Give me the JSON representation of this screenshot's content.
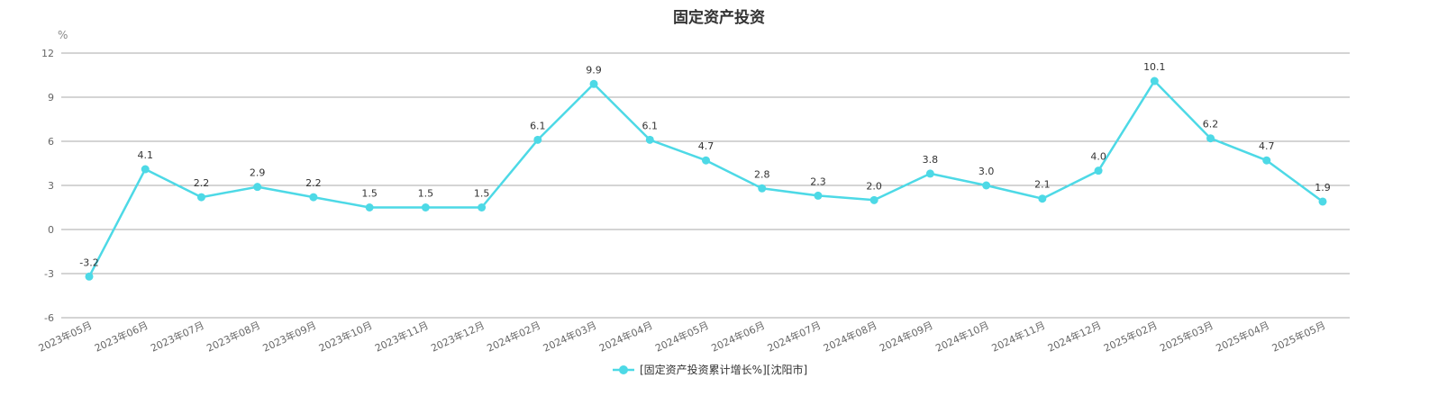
{
  "chart_data": {
    "type": "line",
    "title": "固定资产投资",
    "ylabel": "%",
    "xlabel": "",
    "ylim": [
      -6,
      12
    ],
    "yticks": [
      -6,
      -3,
      0,
      3,
      6,
      9,
      12
    ],
    "grid": true,
    "legend_position": "bottom-center",
    "categories": [
      "2023年05月",
      "2023年06月",
      "2023年07月",
      "2023年08月",
      "2023年09月",
      "2023年10月",
      "2023年11月",
      "2023年12月",
      "2024年02月",
      "2024年03月",
      "2024年04月",
      "2024年05月",
      "2024年06月",
      "2024年07月",
      "2024年08月",
      "2024年09月",
      "2024年10月",
      "2024年11月",
      "2024年12月",
      "2025年02月",
      "2025年03月",
      "2025年04月",
      "2025年05月"
    ],
    "series": [
      {
        "name": "[固定资产投资累计增长%][沈阳市]",
        "color": "#4dd9e6",
        "values": [
          -3.2,
          4.1,
          2.2,
          2.9,
          2.2,
          1.5,
          1.5,
          1.5,
          6.1,
          9.9,
          6.1,
          4.7,
          2.8,
          2.3,
          2.0,
          3.8,
          3.0,
          2.1,
          4.0,
          10.1,
          6.2,
          4.7,
          1.9
        ],
        "labels": [
          "-3.2",
          "4.1",
          "2.2",
          "2.9",
          "2.2",
          "1.5",
          "1.5",
          "1.5",
          "6.1",
          "9.9",
          "6.1",
          "4.7",
          "2.8",
          "2.3",
          "2.0",
          "3.8",
          "3.0",
          "2.1",
          "4.0",
          "10.1",
          "6.2",
          "4.7",
          "1.9"
        ]
      }
    ]
  }
}
